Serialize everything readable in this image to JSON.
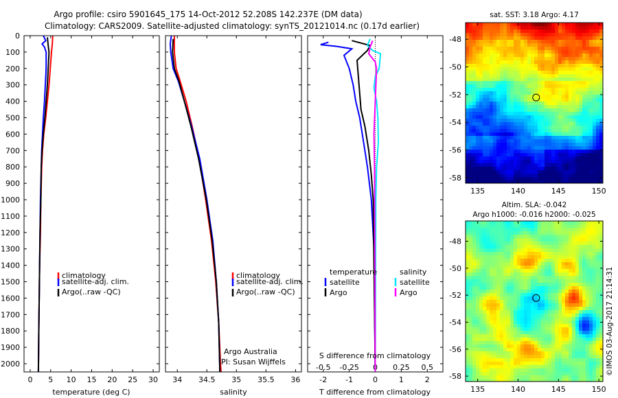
{
  "title": {
    "line1": "Argo profile: csiro 5901645_175 14-Oct-2012 52.208S 142.237E (DM data)",
    "line2": "Climatology: CARS2009. Satellite-adjusted climatology: synTS_20121014.nc (0.17d earlier)"
  },
  "colors": {
    "climatology": "#ff0000",
    "satellite": "#0000ff",
    "argo": "#000000",
    "sal_satellite": "#00e5ff",
    "sal_argo": "#ff00ff"
  },
  "depth_axis": {
    "ylim": [
      0,
      2050
    ],
    "ticks": [
      "0",
      "100",
      "200",
      "300",
      "400",
      "500",
      "600",
      "700",
      "800",
      "900",
      "1000",
      "1100",
      "1200",
      "1300",
      "1400",
      "1500",
      "1600",
      "1700",
      "1800",
      "1900",
      "2000"
    ]
  },
  "chart_data": [
    {
      "id": "temperature",
      "type": "line",
      "xlabel": "temperature (deg C)",
      "xlim": [
        -1.5,
        31.5
      ],
      "xticks": [
        "0",
        "5",
        "10",
        "15",
        "20",
        "25",
        "30"
      ],
      "xtick_values": [
        0,
        5,
        10,
        15,
        20,
        25,
        30
      ],
      "legend": [
        "climatology",
        "satellite-adj. clim.",
        "Argo(..raw -QC)"
      ],
      "series": [
        {
          "name": "climatology",
          "color": "#ff0000",
          "points": [
            [
              5.5,
              0
            ],
            [
              5.4,
              50
            ],
            [
              5.2,
              100
            ],
            [
              4.9,
              200
            ],
            [
              4.6,
              300
            ],
            [
              4.2,
              400
            ],
            [
              3.8,
              500
            ],
            [
              3.3,
              600
            ],
            [
              3.0,
              700
            ],
            [
              2.8,
              800
            ],
            [
              2.6,
              1000
            ],
            [
              2.5,
              1200
            ],
            [
              2.3,
              1400
            ],
            [
              2.2,
              1600
            ],
            [
              2.1,
              1800
            ],
            [
              2.0,
              2050
            ]
          ]
        },
        {
          "name": "satellite-adj. clim.",
          "color": "#0000ff",
          "points": [
            [
              3.2,
              0
            ],
            [
              3.8,
              30
            ],
            [
              2.9,
              50
            ],
            [
              3.5,
              70
            ],
            [
              3.9,
              100
            ],
            [
              3.9,
              200
            ],
            [
              3.7,
              300
            ],
            [
              3.5,
              400
            ],
            [
              3.2,
              500
            ],
            [
              3.0,
              600
            ],
            [
              2.8,
              700
            ],
            [
              2.7,
              800
            ],
            [
              2.5,
              1000
            ],
            [
              2.4,
              1200
            ],
            [
              2.3,
              1400
            ],
            [
              2.2,
              1600
            ],
            [
              2.1,
              1800
            ],
            [
              2.0,
              2050
            ]
          ]
        },
        {
          "name": "Argo(..raw -QC)",
          "color": "#000000",
          "points": [
            [
              4.2,
              10
            ],
            [
              4.4,
              60
            ],
            [
              4.6,
              100
            ],
            [
              4.4,
              200
            ],
            [
              4.2,
              300
            ],
            [
              3.9,
              400
            ],
            [
              3.6,
              500
            ],
            [
              3.2,
              600
            ],
            [
              2.9,
              700
            ],
            [
              2.7,
              800
            ],
            [
              2.6,
              1000
            ],
            [
              2.4,
              1200
            ],
            [
              2.3,
              1400
            ],
            [
              2.2,
              1600
            ],
            [
              2.1,
              1800
            ],
            [
              2.0,
              2050
            ]
          ]
        }
      ]
    },
    {
      "id": "salinity",
      "type": "line",
      "xlabel": "salinity",
      "xlim": [
        33.8,
        36.1
      ],
      "xticks": [
        "34",
        "34.5",
        "35",
        "35.5",
        "36"
      ],
      "xtick_values": [
        34,
        34.5,
        35,
        35.5,
        36
      ],
      "legend": [
        "climatology",
        "satellite-adj. clim.",
        "Argo(..raw -QC)"
      ],
      "annotation": [
        "Argo Australia",
        "PI: Susan Wijffels"
      ],
      "series": [
        {
          "name": "climatology",
          "color": "#ff0000",
          "points": [
            [
              33.95,
              0
            ],
            [
              33.95,
              100
            ],
            [
              33.98,
              200
            ],
            [
              34.05,
              280
            ],
            [
              34.15,
              400
            ],
            [
              34.25,
              550
            ],
            [
              34.37,
              750
            ],
            [
              34.48,
              1000
            ],
            [
              34.58,
              1250
            ],
            [
              34.65,
              1500
            ],
            [
              34.7,
              1750
            ],
            [
              34.73,
              2000
            ],
            [
              34.74,
              2050
            ]
          ]
        },
        {
          "name": "satellite-adj. clim.",
          "color": "#0000ff",
          "points": [
            [
              33.9,
              0
            ],
            [
              33.88,
              50
            ],
            [
              33.89,
              100
            ],
            [
              33.93,
              200
            ],
            [
              34.02,
              280
            ],
            [
              34.12,
              400
            ],
            [
              34.24,
              550
            ],
            [
              34.38,
              750
            ],
            [
              34.5,
              1000
            ],
            [
              34.6,
              1250
            ],
            [
              34.66,
              1500
            ],
            [
              34.7,
              1750
            ],
            [
              34.72,
              2050
            ]
          ]
        },
        {
          "name": "Argo(..raw -QC)",
          "color": "#000000",
          "points": [
            [
              33.93,
              20
            ],
            [
              33.92,
              100
            ],
            [
              33.95,
              200
            ],
            [
              34.03,
              280
            ],
            [
              34.12,
              400
            ],
            [
              34.23,
              550
            ],
            [
              34.36,
              750
            ],
            [
              34.49,
              1000
            ],
            [
              34.59,
              1250
            ],
            [
              34.66,
              1500
            ],
            [
              34.7,
              1750
            ],
            [
              34.72,
              2050
            ]
          ]
        }
      ]
    },
    {
      "id": "difference",
      "type": "line",
      "xlabel": "T difference from climatology",
      "x2label": "S difference from climatology",
      "xlim": [
        -2.6,
        2.6
      ],
      "xticks": [
        "-2",
        "-1",
        "0",
        "1",
        "2"
      ],
      "xtick_values": [
        -2,
        -1,
        0,
        1,
        2
      ],
      "x2ticks": [
        "-0.5",
        "-0.25",
        "0",
        "0.25",
        "0.5"
      ],
      "x2tick_positions": [
        -2,
        -1,
        0,
        1,
        2
      ],
      "legend_temperature": {
        "title": "temperature",
        "items": [
          "satellite",
          "Argo"
        ]
      },
      "legend_salinity": {
        "title": "salinity",
        "items": [
          "satellite",
          "Argo"
        ]
      },
      "series": [
        {
          "name": "T satellite",
          "color": "#0000ff",
          "points": [
            [
              -1.8,
              40
            ],
            [
              -2.1,
              55
            ],
            [
              -1.5,
              65
            ],
            [
              -0.9,
              80
            ],
            [
              -1.2,
              120
            ],
            [
              -1.0,
              200
            ],
            [
              -0.85,
              300
            ],
            [
              -0.75,
              400
            ],
            [
              -0.6,
              500
            ],
            [
              -0.45,
              650
            ],
            [
              -0.3,
              800
            ],
            [
              -0.15,
              1000
            ],
            [
              -0.05,
              1300
            ],
            [
              0.0,
              2050
            ]
          ]
        },
        {
          "name": "T Argo",
          "color": "#000000",
          "points": [
            [
              -0.9,
              30
            ],
            [
              -0.2,
              60
            ],
            [
              -0.3,
              90
            ],
            [
              -0.7,
              150
            ],
            [
              -0.65,
              250
            ],
            [
              -0.6,
              350
            ],
            [
              -0.55,
              450
            ],
            [
              -0.4,
              550
            ],
            [
              -0.25,
              700
            ],
            [
              -0.15,
              850
            ],
            [
              -0.08,
              1000
            ],
            [
              0.0,
              2050
            ]
          ]
        },
        {
          "name": "S satellite",
          "color": "#00e5ff",
          "points": [
            [
              -0.2,
              20
            ],
            [
              -0.3,
              60
            ],
            [
              -0.1,
              90
            ],
            [
              0.2,
              110
            ],
            [
              0.15,
              200
            ],
            [
              0.0,
              250
            ],
            [
              -0.05,
              320
            ],
            [
              0.05,
              400
            ],
            [
              0.1,
              500
            ],
            [
              0.12,
              650
            ],
            [
              0.05,
              800
            ],
            [
              0.02,
              1000
            ],
            [
              0.0,
              2050
            ]
          ]
        },
        {
          "name": "S Argo",
          "color": "#ff00ff",
          "points": [
            [
              -0.1,
              30
            ],
            [
              -0.2,
              70
            ],
            [
              -0.25,
              110
            ],
            [
              -0.1,
              140
            ],
            [
              0.0,
              160
            ],
            [
              0.05,
              200
            ],
            [
              0.0,
              400
            ],
            [
              -0.05,
              600
            ],
            [
              -0.03,
              800
            ],
            [
              0.0,
              2050
            ]
          ]
        }
      ]
    }
  ],
  "sst_map": {
    "title": "sat. SST: 3.18 Argo: 4.17",
    "yticks": [
      "-48",
      "-50",
      "-52",
      "-54",
      "-56",
      "-58"
    ],
    "ytick_values": [
      -48,
      -50,
      -52,
      -54,
      -56,
      -58
    ],
    "xticks": [
      "135",
      "140",
      "145",
      "150"
    ],
    "xtick_values": [
      135,
      140,
      145,
      150
    ],
    "lat_range": [
      -46.8,
      -58.4
    ],
    "lon_range": [
      133.5,
      150.5
    ],
    "marker": {
      "lon": 142.237,
      "lat": -52.208
    }
  },
  "sla_map": {
    "title_line1": "Altim. SLA: -0.042",
    "title_line2": "Argo h1000: -0.016 h2000: -0.025",
    "yticks": [
      "-48",
      "-50",
      "-52",
      "-54",
      "-56",
      "-58"
    ],
    "ytick_values": [
      -48,
      -50,
      -52,
      -54,
      -56,
      -58
    ],
    "xticks": [
      "135",
      "140",
      "145",
      "150"
    ],
    "xtick_values": [
      135,
      140,
      145,
      150
    ],
    "lat_range": [
      -46.5,
      -58.4
    ],
    "lon_range": [
      133.5,
      150.5
    ],
    "marker": {
      "lon": 142.237,
      "lat": -52.208
    }
  },
  "credit": "©IMOS 03-Aug-2017 21:14:31"
}
